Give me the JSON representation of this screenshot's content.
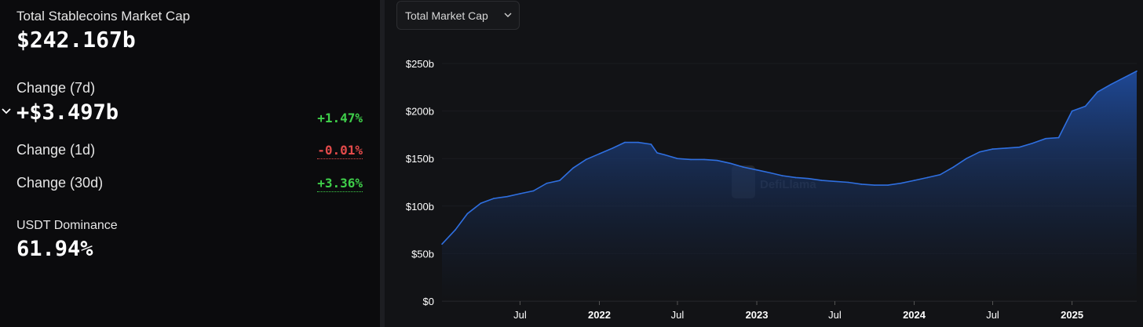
{
  "stats": {
    "title": "Total Stablecoins Market Cap",
    "total": "$242.167b",
    "change7d_label": "Change (7d)",
    "change7d_value": "+$3.497b",
    "change7d_pct": "+1.47%",
    "change1d_label": "Change (1d)",
    "change1d_pct": "-0.01%",
    "change30d_label": "Change (30d)",
    "change30d_pct": "+3.36%",
    "dominance_label": "USDT Dominance",
    "dominance_value": "61.94%"
  },
  "controls": {
    "metric_select": "Total Market Cap"
  },
  "watermark": "DefiLlama",
  "colors": {
    "positive": "#3fcf4a",
    "negative": "#e24a4a",
    "series": "#2f6fe0",
    "background": "#121316"
  },
  "chart_data": {
    "type": "area",
    "series": [
      {
        "x": [
          "2021-01-01",
          "2021-02-01",
          "2021-03-01",
          "2021-04-01",
          "2021-05-01",
          "2021-06-01",
          "2021-07-01",
          "2021-08-01",
          "2021-09-01",
          "2021-10-01",
          "2021-11-01",
          "2021-12-01",
          "2022-01-01",
          "2022-02-01",
          "2022-03-01",
          "2022-04-01",
          "2022-05-01",
          "2022-05-15",
          "2022-06-01",
          "2022-07-01",
          "2022-08-01",
          "2022-09-01",
          "2022-10-01",
          "2022-11-01",
          "2022-12-01",
          "2023-01-01",
          "2023-02-01",
          "2023-03-01",
          "2023-04-01",
          "2023-05-01",
          "2023-06-01",
          "2023-07-01",
          "2023-08-01",
          "2023-09-01",
          "2023-10-01",
          "2023-11-01",
          "2023-12-01",
          "2024-01-01",
          "2024-02-01",
          "2024-03-01",
          "2024-04-01",
          "2024-05-01",
          "2024-06-01",
          "2024-07-01",
          "2024-08-01",
          "2024-09-01",
          "2024-10-01",
          "2024-11-01",
          "2024-12-01",
          "2025-01-01",
          "2025-02-01",
          "2025-03-01",
          "2025-04-01",
          "2025-05-01",
          "2025-05-31"
        ],
        "values": [
          60,
          75,
          92,
          103,
          108,
          110,
          113,
          116,
          124,
          127,
          140,
          149,
          155,
          161,
          167,
          167,
          165,
          156,
          154,
          150,
          149,
          149,
          148,
          145,
          141,
          138,
          135,
          132,
          130,
          129,
          127,
          126,
          125,
          123,
          122,
          122,
          124,
          127,
          130,
          133,
          141,
          150,
          157,
          160,
          161,
          162,
          166,
          171,
          172,
          200,
          205,
          220,
          228,
          235,
          242
        ]
      }
    ],
    "xlabel": "",
    "ylabel": "",
    "xlim": [
      "2021-01-01",
      "2025-05-31"
    ],
    "ylim": [
      0,
      250
    ],
    "x_ticks": [
      "Jul",
      "2022",
      "Jul",
      "2023",
      "Jul",
      "2024",
      "Jul",
      "2025"
    ],
    "y_ticks": [
      "$0",
      "$50b",
      "$100b",
      "$150b",
      "$200b",
      "$250b"
    ],
    "grid": false,
    "legend": "none"
  }
}
